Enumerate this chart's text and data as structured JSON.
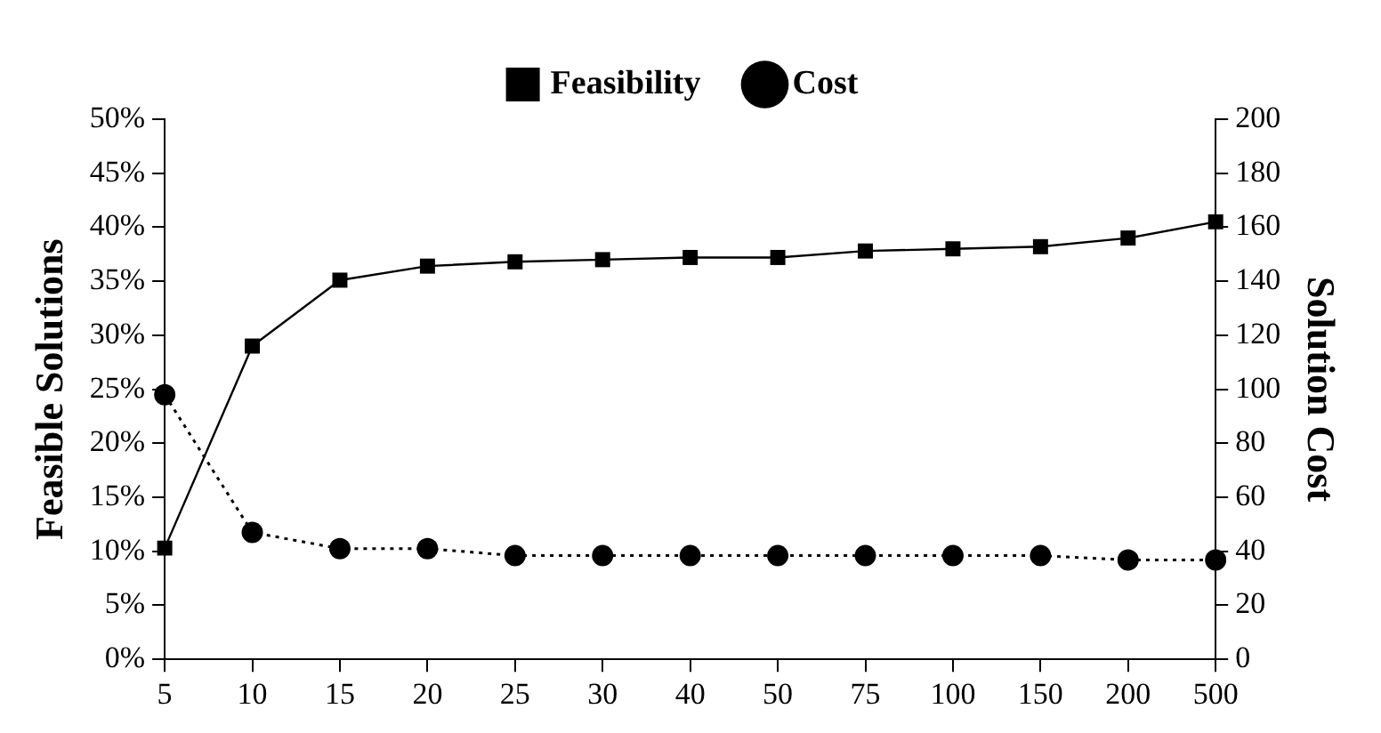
{
  "chart_data": {
    "type": "line",
    "xlabel": null,
    "ylabel": "Feasible Solutions",
    "y2label": "Solution Cost",
    "categories": [
      "5",
      "10",
      "15",
      "20",
      "25",
      "30",
      "40",
      "50",
      "75",
      "100",
      "150",
      "200",
      "500"
    ],
    "series": [
      {
        "name": "Feasibility",
        "color": "#000000",
        "marker": "square",
        "line_style": "solid",
        "values": [
          10.3,
          29.0,
          35.1,
          36.4,
          36.8,
          37.0,
          37.2,
          37.2,
          37.8,
          38.0,
          38.2,
          39.0,
          40.5
        ]
      },
      {
        "name": "Cost",
        "color": "#000000",
        "marker": "circle",
        "line_style": "dotted",
        "axis": "y2",
        "values": [
          98,
          47,
          41,
          41,
          38.4,
          38.4,
          38.4,
          38.4,
          38.4,
          38.4,
          38.4,
          36.8,
          36.8
        ]
      }
    ],
    "ylim": [
      0,
      50
    ],
    "yticks": [
      {
        "value": 0,
        "label": "0%"
      },
      {
        "value": 5,
        "label": "5%"
      },
      {
        "value": 10,
        "label": "10%"
      },
      {
        "value": 15,
        "label": "15%"
      },
      {
        "value": 20,
        "label": "20%"
      },
      {
        "value": 25,
        "label": "25%"
      },
      {
        "value": 30,
        "label": "30%"
      },
      {
        "value": 35,
        "label": "35%"
      },
      {
        "value": 40,
        "label": "40%"
      },
      {
        "value": 45,
        "label": "45%"
      },
      {
        "value": 50,
        "label": "50%"
      }
    ],
    "y2lim": [
      0,
      200
    ],
    "y2ticks": [
      0,
      20,
      40,
      60,
      80,
      100,
      120,
      140,
      160,
      180,
      200
    ],
    "grid": false,
    "legend": "top"
  }
}
